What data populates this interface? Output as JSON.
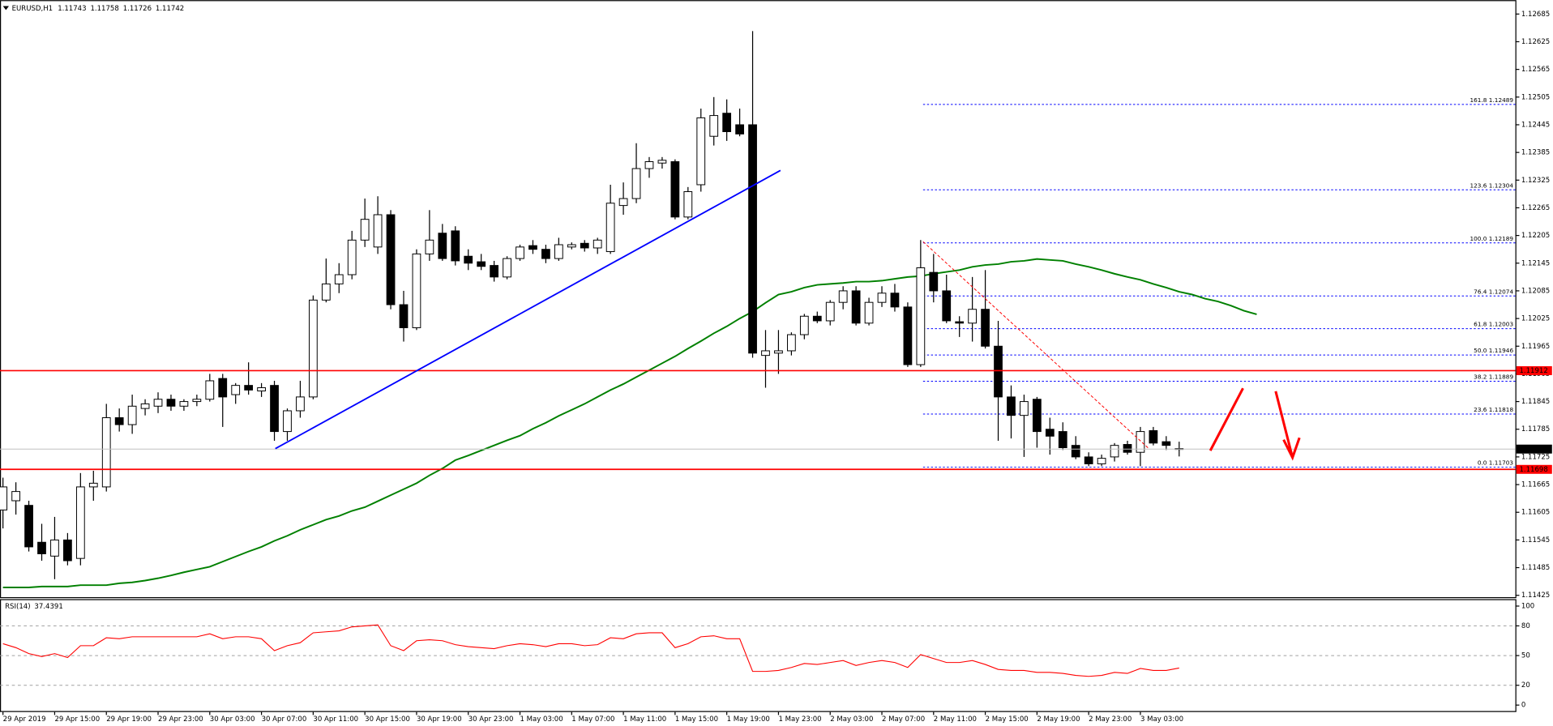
{
  "chart_data": [
    {
      "type": "candlestick",
      "title": "EURUSD,H1",
      "categories": [
        "29 Apr 2019",
        null,
        null,
        null,
        "29 Apr 15:00",
        null,
        null,
        null,
        "29 Apr 19:00",
        null,
        null,
        null,
        "29 Apr 23:00",
        null,
        null,
        null,
        "30 Apr 03:00",
        null,
        null,
        null,
        "30 Apr 07:00",
        null,
        null,
        null,
        "30 Apr 11:00",
        null,
        null,
        null,
        "30 Apr 15:00",
        null,
        null,
        null,
        "30 Apr 19:00",
        null,
        null,
        null,
        "30 Apr 23:00",
        null,
        null,
        null,
        "1 May 03:00",
        null,
        null,
        null,
        "1 May 07:00",
        null,
        null,
        null,
        "1 May 11:00",
        null,
        null,
        null,
        "1 May 15:00",
        null,
        null,
        null,
        "1 May 19:00",
        null,
        null,
        null,
        "1 May 23:00",
        null,
        null,
        null,
        "2 May 03:00",
        null,
        null,
        null,
        "2 May 07:00",
        null,
        null,
        null,
        "2 May 11:00",
        null,
        null,
        null,
        "2 May 15:00",
        null,
        null,
        null,
        "2 May 19:00",
        null,
        null,
        null,
        "2 May 23:00",
        null,
        null,
        null,
        "3 May 03:00",
        null,
        null,
        null,
        null,
        null,
        null,
        null,
        null,
        null
      ],
      "open": [
        1.1161,
        1.1163,
        1.1162,
        1.1154,
        1.1151,
        1.11545,
        1.11505,
        1.1166,
        1.1166,
        1.1181,
        1.11795,
        1.1183,
        1.11835,
        1.1185,
        1.11835,
        1.11845,
        1.1185,
        1.11895,
        1.1186,
        1.1188,
        1.11868,
        1.1188,
        1.1178,
        1.11825,
        1.11855,
        1.12065,
        1.121,
        1.1212,
        1.12195,
        1.1218,
        1.1225,
        1.12055,
        1.12005,
        1.12165,
        1.1221,
        1.12215,
        1.1216,
        1.12148,
        1.1214,
        1.12115,
        1.12155,
        1.12183,
        1.12175,
        1.12155,
        1.1218,
        1.12188,
        1.12178,
        1.1217,
        1.1227,
        1.12285,
        1.1235,
        1.12362,
        1.12365,
        1.12245,
        1.12315,
        1.1242,
        1.1247,
        1.12445,
        1.12445,
        1.11945,
        1.1195,
        1.11955,
        1.1199,
        1.1203,
        1.1202,
        1.1206,
        1.12085,
        1.12015,
        1.1206,
        1.1208,
        1.1205,
        1.11925,
        1.12125,
        1.12085,
        1.12018,
        1.12015,
        1.12045,
        1.11965,
        1.11855,
        1.11815,
        1.1185,
        1.11785,
        1.1178,
        1.1175,
        1.11725,
        1.1171,
        1.11725,
        1.11752,
        1.11735,
        1.11782,
        1.11758,
        1.11743,
        null,
        null,
        null,
        null,
        null,
        null
      ],
      "high": [
        1.1168,
        1.1167,
        1.1163,
        1.1158,
        1.11595,
        1.1156,
        1.1169,
        1.11695,
        1.1184,
        1.1183,
        1.1186,
        1.1185,
        1.11865,
        1.1186,
        1.1185,
        1.1186,
        1.11905,
        1.11905,
        1.11885,
        1.1193,
        1.11885,
        1.1189,
        1.1183,
        1.1189,
        1.12075,
        1.12155,
        1.12145,
        1.12215,
        1.12285,
        1.1229,
        1.1226,
        1.12085,
        1.12175,
        1.1226,
        1.1223,
        1.12225,
        1.12175,
        1.12165,
        1.1215,
        1.1216,
        1.12185,
        1.12195,
        1.12185,
        1.122,
        1.1219,
        1.12195,
        1.122,
        1.12315,
        1.1232,
        1.12405,
        1.12375,
        1.12375,
        1.1237,
        1.1231,
        1.1248,
        1.12505,
        1.125,
        1.1248,
        1.12648,
        1.12,
        1.12,
        1.11995,
        1.12035,
        1.1204,
        1.12065,
        1.12095,
        1.12095,
        1.1207,
        1.12095,
        1.121,
        1.1206,
        1.12195,
        1.12165,
        1.1212,
        1.1203,
        1.12115,
        1.1213,
        1.1202,
        1.1188,
        1.1186,
        1.11855,
        1.1181,
        1.118,
        1.1177,
        1.11735,
        1.1173,
        1.11755,
        1.1176,
        1.1179,
        1.1179,
        1.1177,
        1.11758,
        null,
        null,
        null,
        null,
        null,
        null
      ],
      "low": [
        1.1157,
        1.116,
        1.1152,
        1.115,
        1.1146,
        1.1149,
        1.1149,
        1.1163,
        1.1165,
        1.1178,
        1.11775,
        1.11815,
        1.1182,
        1.11825,
        1.11825,
        1.11835,
        1.11845,
        1.1179,
        1.1184,
        1.1186,
        1.11855,
        1.1176,
        1.1176,
        1.1181,
        1.1185,
        1.1206,
        1.1208,
        1.1211,
        1.1218,
        1.12165,
        1.12045,
        1.11975,
        1.12,
        1.1215,
        1.1215,
        1.1214,
        1.1213,
        1.1213,
        1.12105,
        1.1211,
        1.1215,
        1.12165,
        1.12145,
        1.1215,
        1.12175,
        1.1217,
        1.12165,
        1.12165,
        1.1225,
        1.12275,
        1.1233,
        1.1235,
        1.1224,
        1.1224,
        1.123,
        1.124,
        1.1241,
        1.1242,
        1.1194,
        1.11875,
        1.11905,
        1.11945,
        1.1198,
        1.12015,
        1.1201,
        1.12045,
        1.1201,
        1.1201,
        1.1205,
        1.1204,
        1.1192,
        1.1192,
        1.1206,
        1.12015,
        1.11985,
        1.11975,
        1.1196,
        1.1176,
        1.11765,
        1.11725,
        1.11745,
        1.1173,
        1.1174,
        1.1172,
        1.11705,
        1.11705,
        1.11715,
        1.1173,
        1.11705,
        1.1175,
        1.1174,
        1.11726,
        null,
        null,
        null,
        null,
        null,
        null
      ],
      "close": [
        1.1166,
        1.1165,
        1.1153,
        1.11515,
        1.11545,
        1.115,
        1.1166,
        1.11668,
        1.1181,
        1.11795,
        1.11835,
        1.1184,
        1.1185,
        1.11835,
        1.11845,
        1.1185,
        1.1189,
        1.11855,
        1.1188,
        1.1187,
        1.11875,
        1.1178,
        1.11825,
        1.11855,
        1.12065,
        1.121,
        1.1212,
        1.12195,
        1.1224,
        1.1225,
        1.12055,
        1.12005,
        1.12165,
        1.12195,
        1.12155,
        1.1215,
        1.12145,
        1.12138,
        1.12115,
        1.12155,
        1.1218,
        1.12175,
        1.12155,
        1.12185,
        1.12185,
        1.12178,
        1.12195,
        1.12275,
        1.12285,
        1.1235,
        1.12365,
        1.12368,
        1.12245,
        1.123,
        1.1246,
        1.12465,
        1.1243,
        1.12425,
        1.1195,
        1.11955,
        1.11955,
        1.1199,
        1.1203,
        1.1202,
        1.1206,
        1.12085,
        1.12015,
        1.1206,
        1.1208,
        1.1205,
        1.11925,
        1.12135,
        1.12085,
        1.1202,
        1.12015,
        1.12045,
        1.11965,
        1.11855,
        1.11815,
        1.11845,
        1.1178,
        1.1177,
        1.11745,
        1.11725,
        1.1171,
        1.11722,
        1.1175,
        1.11735,
        1.1178,
        1.11755,
        1.1175,
        1.11742,
        null,
        null,
        null,
        null,
        null,
        null
      ],
      "ma": {
        "color": "#008000",
        "values": [
          1.11442,
          1.11442,
          1.11442,
          1.11444,
          1.11444,
          1.11444,
          1.11447,
          1.11447,
          1.11447,
          1.11451,
          1.11453,
          1.11457,
          1.11462,
          1.11468,
          1.11475,
          1.11481,
          1.11487,
          1.11498,
          1.11509,
          1.1152,
          1.1153,
          1.11543,
          1.11554,
          1.11567,
          1.11578,
          1.11589,
          1.11597,
          1.11608,
          1.11616,
          1.11629,
          1.11642,
          1.11655,
          1.11668,
          1.11685,
          1.117,
          1.11718,
          1.11728,
          1.11739,
          1.1175,
          1.11761,
          1.11771,
          1.11786,
          1.11799,
          1.11814,
          1.11827,
          1.1184,
          1.11855,
          1.1187,
          1.11883,
          1.11898,
          1.11913,
          1.11928,
          1.11943,
          1.1196,
          1.11976,
          1.11993,
          1.12008,
          1.12025,
          1.1204,
          1.12059,
          1.12077,
          1.12083,
          1.12092,
          1.12098,
          1.121,
          1.12102,
          1.12105,
          1.12105,
          1.12107,
          1.12111,
          1.12115,
          1.12117,
          1.12122,
          1.12126,
          1.1213,
          1.12137,
          1.12141,
          1.12143,
          1.12148,
          1.1215,
          1.12154,
          1.12152,
          1.1215,
          1.12143,
          1.12137,
          1.1213,
          1.12122,
          1.12115,
          1.12109,
          1.121,
          1.12092,
          1.12083,
          1.12077,
          1.12068,
          1.12062,
          1.12053,
          1.12042,
          1.12034
        ]
      },
      "levels": {
        "color": "#ff0000",
        "values": [
          1.11912,
          1.11698
        ]
      },
      "fib": {
        "color": "#0000ff",
        "levels": [
          {
            "value": 1.12489,
            "label": "161.8 1.12489"
          },
          {
            "value": 1.12304,
            "label": "123.6 1.12304"
          },
          {
            "value": 1.12189,
            "label": "100.0 1.12189"
          },
          {
            "value": 1.12074,
            "label": "76.4 1.12074"
          },
          {
            "value": 1.12003,
            "label": "61.8 1.12003"
          },
          {
            "value": 1.11946,
            "label": "50.0 1.11946"
          },
          {
            "value": 1.11889,
            "label": "38.2 1.11889"
          },
          {
            "value": 1.11818,
            "label": "23.6 1.11818"
          },
          {
            "value": 1.11703,
            "label": "0.0 1.11703"
          }
        ]
      },
      "ylim": [
        1.11421,
        1.12713
      ],
      "yticks": [
        1.12685,
        1.12625,
        1.12565,
        1.12505,
        1.12445,
        1.12385,
        1.12325,
        1.12265,
        1.12205,
        1.12145,
        1.12085,
        1.12025,
        1.11965,
        1.11905,
        1.11845,
        1.11785,
        1.11725,
        1.11665,
        1.11605,
        1.11545,
        1.11485,
        1.11425
      ]
    },
    {
      "type": "line",
      "title": "RSI(14)",
      "series": [
        {
          "color": "#ff0000",
          "values": [
            62,
            58,
            52,
            49,
            52,
            48,
            60,
            60,
            68,
            67,
            69,
            69,
            69,
            69,
            69,
            69,
            72,
            67,
            69,
            69,
            67,
            55,
            60,
            63,
            73,
            74,
            75,
            79,
            80,
            81,
            60,
            55,
            65,
            66,
            65,
            61,
            59,
            58,
            57,
            60,
            62,
            61,
            59,
            62,
            62,
            60,
            61,
            68,
            67,
            72,
            73,
            73,
            58,
            62,
            69,
            70,
            67,
            67,
            34,
            34,
            35,
            38,
            42,
            41,
            43,
            45,
            40,
            43,
            45,
            43,
            38,
            51,
            47,
            43,
            43,
            45,
            41,
            36,
            35,
            35,
            33,
            33,
            32,
            30,
            29,
            30,
            33,
            32,
            37,
            35,
            35,
            37.4391
          ]
        }
      ],
      "levels": [
        80,
        50,
        20
      ],
      "ylim": [
        -7,
        106
      ],
      "yticks": [
        100,
        80,
        50,
        20,
        0
      ]
    }
  ]
}
